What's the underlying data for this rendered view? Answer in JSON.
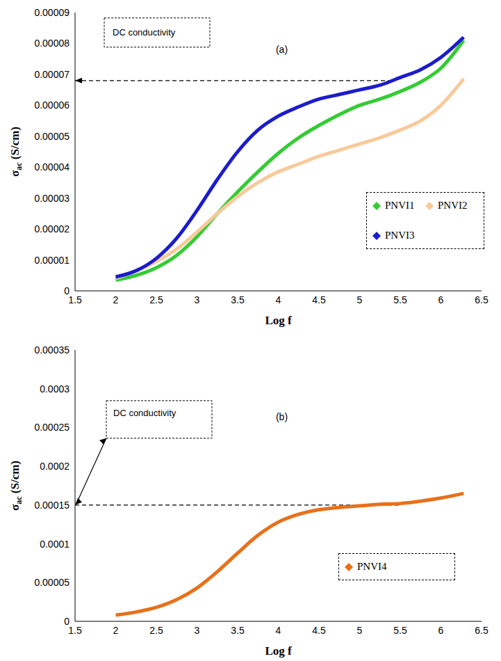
{
  "chart_data": [
    {
      "type": "line",
      "title": "(a)",
      "x_label": "Log f",
      "y_label": "σac (S/cm)",
      "x": [
        2,
        2.25,
        2.5,
        2.75,
        3,
        3.25,
        3.5,
        3.75,
        4,
        4.25,
        4.5,
        4.75,
        5,
        5.25,
        5.5,
        5.75,
        6,
        6.28
      ],
      "series": [
        {
          "name": "PNVI1",
          "color": "#33cc33",
          "values": [
            3.5e-06,
            5e-06,
            7.5e-06,
            1.15e-05,
            1.75e-05,
            2.5e-05,
            3.2e-05,
            3.85e-05,
            4.45e-05,
            4.95e-05,
            5.35e-05,
            5.7e-05,
            6e-05,
            6.2e-05,
            6.45e-05,
            6.75e-05,
            7.2e-05,
            8.1e-05
          ]
        },
        {
          "name": "PNVI2",
          "color": "#f8c99a",
          "values": [
            4e-06,
            6.5e-06,
            9.5e-06,
            1.35e-05,
            1.9e-05,
            2.5e-05,
            3.05e-05,
            3.5e-05,
            3.85e-05,
            4.1e-05,
            4.35e-05,
            4.55e-05,
            4.75e-05,
            4.95e-05,
            5.2e-05,
            5.5e-05,
            6e-05,
            6.85e-05
          ]
        },
        {
          "name": "PNVI3",
          "color": "#1c1ccc",
          "values": [
            4.5e-06,
            6.5e-06,
            1.05e-05,
            1.7e-05,
            2.6e-05,
            3.6e-05,
            4.5e-05,
            5.2e-05,
            5.65e-05,
            5.95e-05,
            6.2e-05,
            6.35e-05,
            6.5e-05,
            6.65e-05,
            6.9e-05,
            7.15e-05,
            7.55e-05,
            8.2e-05
          ]
        }
      ],
      "xlim": [
        1.5,
        6.5
      ],
      "xticks": [
        1.5,
        2,
        2.5,
        3,
        3.5,
        4,
        4.5,
        5,
        5.5,
        6,
        6.5
      ],
      "ylim": [
        0,
        9e-05
      ],
      "yticks": [
        0,
        1e-05,
        2e-05,
        3e-05,
        4e-05,
        5e-05,
        6e-05,
        7e-05,
        8e-05,
        9e-05
      ],
      "grid": false,
      "legend": "lower right",
      "annotations": [
        {
          "text": "DC conductivity",
          "x": [
            1.5,
            5.4
          ],
          "y": 6.8e-05
        }
      ]
    },
    {
      "type": "line",
      "title": "(b)",
      "x_label": "Log f",
      "y_label": "σac (S/cm)",
      "x": [
        2,
        2.25,
        2.5,
        2.75,
        3,
        3.25,
        3.5,
        3.75,
        4,
        4.25,
        4.5,
        4.75,
        5,
        5.25,
        5.5,
        5.75,
        6,
        6.28
      ],
      "series": [
        {
          "name": "PNVI4",
          "color": "#e8701a",
          "values": [
            8e-06,
            1.2e-05,
            1.8e-05,
            2.8e-05,
            4.3e-05,
            6.4e-05,
            8.8e-05,
            0.000111,
            0.000128,
            0.000138,
            0.000144,
            0.000147,
            0.000149,
            0.000151,
            0.000152,
            0.000155,
            0.000159,
            0.000165
          ]
        }
      ],
      "xlim": [
        1.5,
        6.5
      ],
      "xticks": [
        1.5,
        2,
        2.5,
        3,
        3.5,
        4,
        4.5,
        5,
        5.5,
        6,
        6.5
      ],
      "ylim": [
        0,
        0.00035
      ],
      "yticks": [
        0,
        5e-05,
        0.0001,
        0.00015,
        0.0002,
        0.00025,
        0.0003,
        0.00035
      ],
      "grid": false,
      "legend": "lower right",
      "annotations": [
        {
          "text": "DC conductivity",
          "x": [
            1.5,
            5.5
          ],
          "y": 0.00015
        }
      ]
    }
  ]
}
